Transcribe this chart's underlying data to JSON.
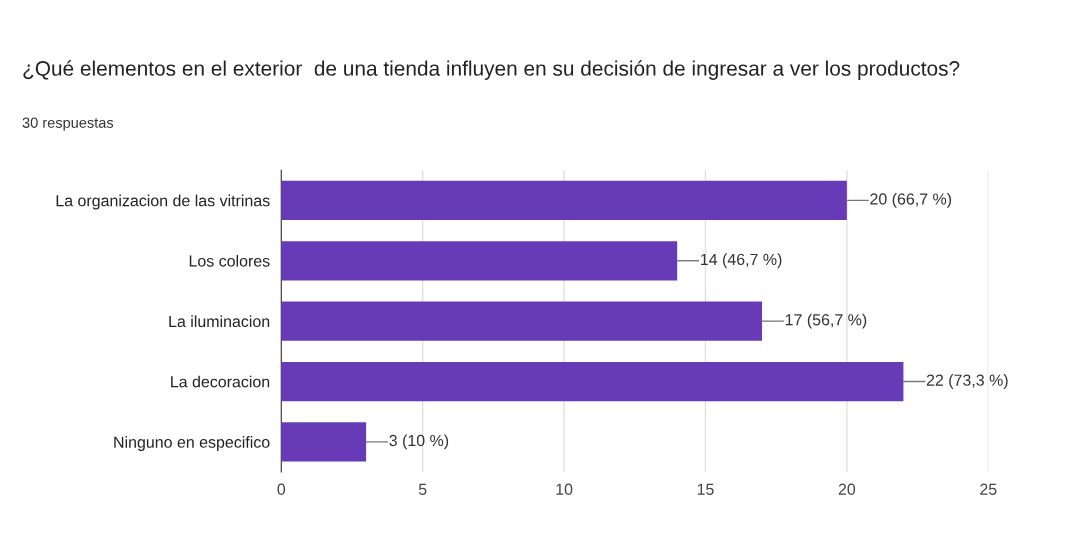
{
  "chart_data": {
    "type": "bar",
    "orientation": "horizontal",
    "title": "¿Qué elementos en el exterior  de una tienda influyen en su decisión de ingresar a ver los productos?",
    "subtitle": "30 respuestas",
    "categories": [
      "La organizacion de las vitrinas",
      "Los colores",
      "La iluminacion",
      "La decoracion",
      "Ninguno en especifico"
    ],
    "values": [
      20,
      14,
      17,
      22,
      3
    ],
    "value_labels": [
      "20 (66,7 %)",
      "14 (46,7 %)",
      "17 (56,7 %)",
      "22 (73,3 %)",
      "3 (10 %)"
    ],
    "color": "#673ab7",
    "xlim": [
      0,
      25
    ],
    "xticks": [
      0,
      5,
      10,
      15,
      20,
      25
    ],
    "grid": "x"
  }
}
